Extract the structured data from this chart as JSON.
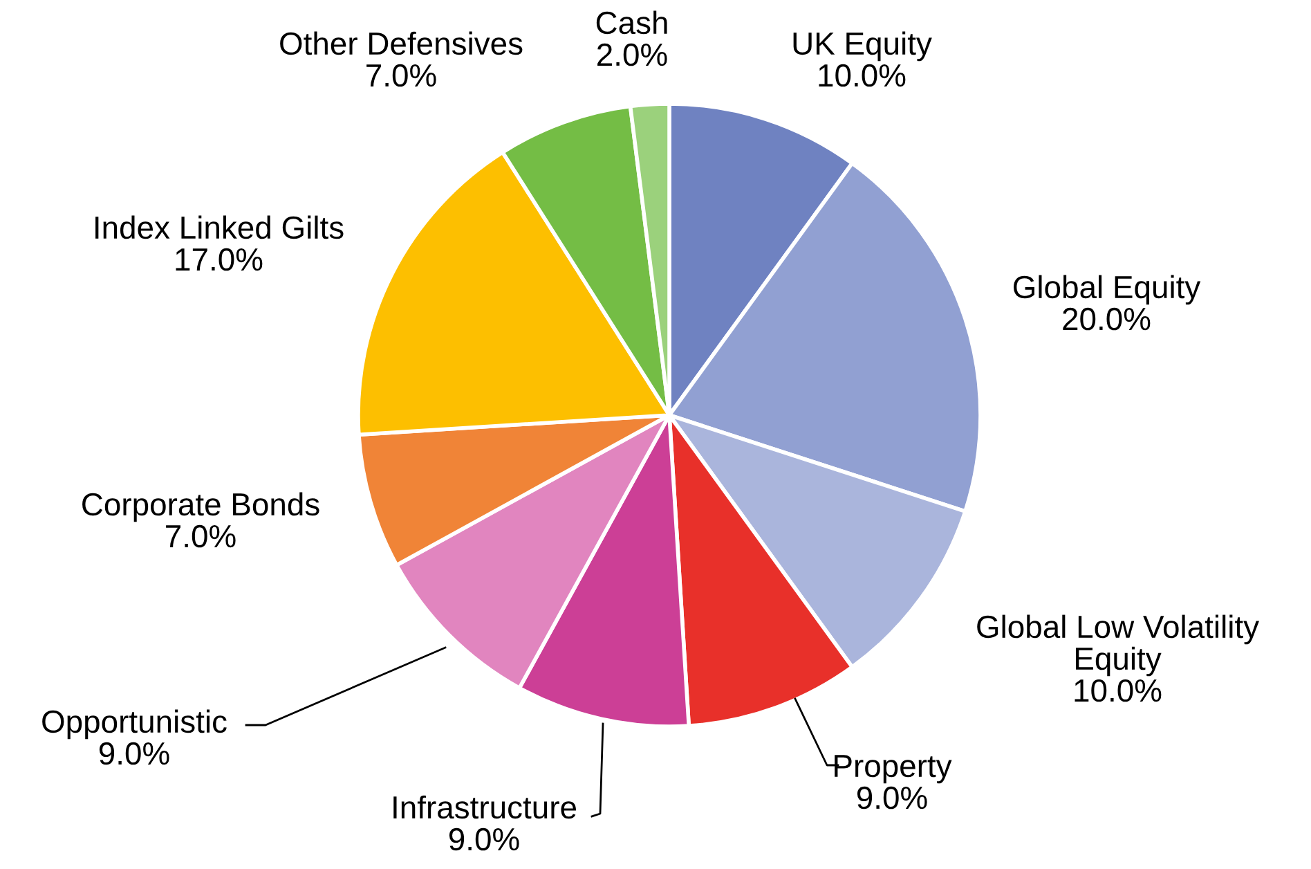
{
  "chart_data": {
    "type": "pie",
    "categories": [
      "UK Equity",
      "Global Equity",
      "Global Low Volatility Equity",
      "Property",
      "Infrastructure",
      "Opportunistic",
      "Corporate Bonds",
      "Index Linked Gilts",
      "Other Defensives",
      "Cash"
    ],
    "values": [
      10,
      20,
      10,
      9,
      9,
      9,
      7,
      17,
      7,
      2
    ],
    "colors": [
      "#6f82c1",
      "#91a0d2",
      "#aab5dc",
      "#e8302a",
      "#cc3f96",
      "#e185bf",
      "#f08437",
      "#fdbf00",
      "#74bd45",
      "#9bd17c"
    ],
    "value_labels": [
      "10.0%",
      "20.0%",
      "10.0%",
      "9.0%",
      "9.0%",
      "9.0%",
      "7.0%",
      "17.0%",
      "7.0%",
      "2.0%"
    ],
    "legend": false
  }
}
